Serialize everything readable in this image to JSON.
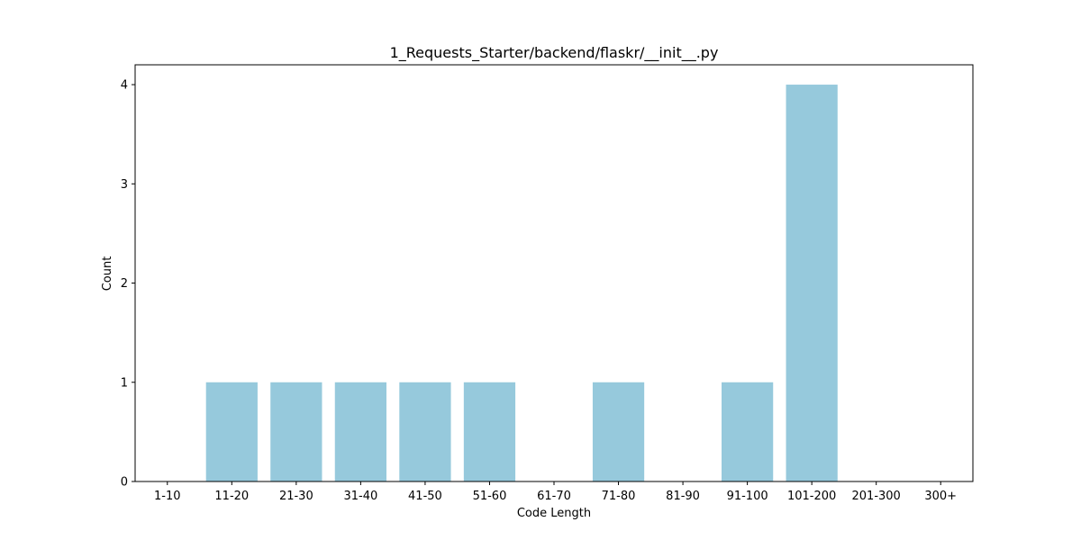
{
  "chart_data": {
    "type": "bar",
    "title": "1_Requests_Starter/backend/flaskr/__init__.py",
    "xlabel": "Code Length",
    "ylabel": "Count",
    "categories": [
      "1-10",
      "11-20",
      "21-30",
      "31-40",
      "41-50",
      "51-60",
      "61-70",
      "71-80",
      "81-90",
      "91-100",
      "101-200",
      "201-300",
      "300+"
    ],
    "values": [
      0,
      1,
      1,
      1,
      1,
      1,
      0,
      1,
      0,
      1,
      4,
      0,
      0
    ],
    "ylim": [
      0,
      4.2
    ],
    "yticks": [
      "0",
      "1",
      "2",
      "3",
      "4"
    ],
    "grid": false,
    "bar_color": "#96c9dc"
  }
}
